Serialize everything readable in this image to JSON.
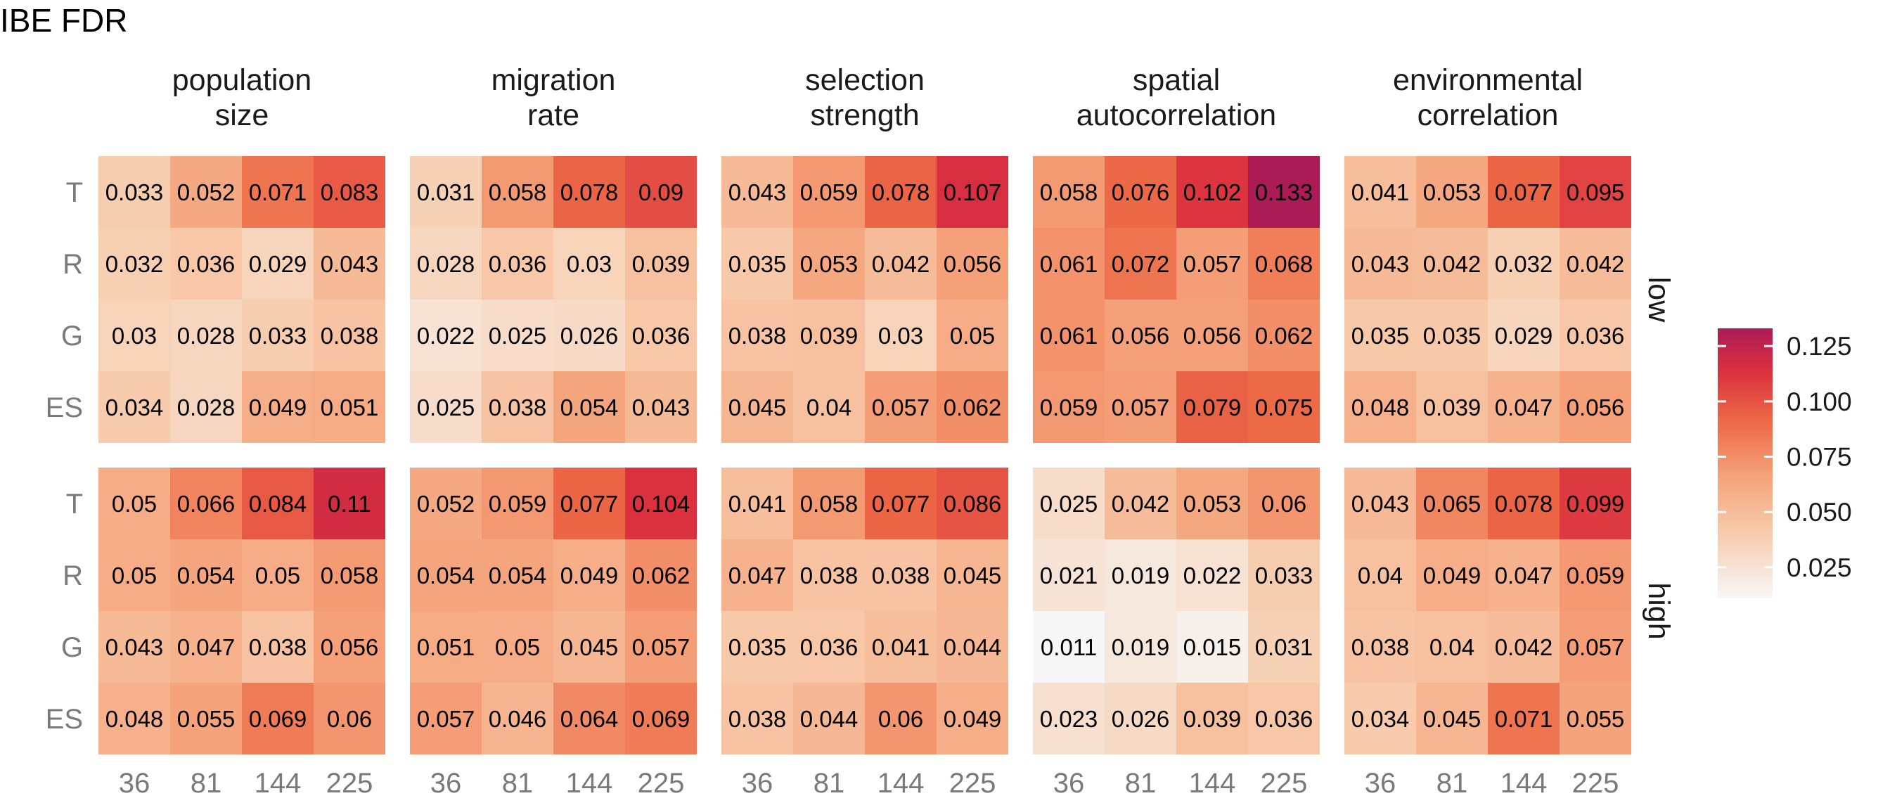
{
  "chart_data": {
    "type": "heatmap",
    "title": "IBE FDR",
    "columns": [
      {
        "label_lines": [
          "population",
          "size"
        ]
      },
      {
        "label_lines": [
          "migration",
          "rate"
        ]
      },
      {
        "label_lines": [
          "selection",
          "strength"
        ]
      },
      {
        "label_lines": [
          "spatial",
          "autocorrelation"
        ]
      },
      {
        "label_lines": [
          "environmental",
          "correlation"
        ]
      }
    ],
    "row_facets": [
      "low",
      "high"
    ],
    "x_categories": [
      "36",
      "81",
      "144",
      "225"
    ],
    "y_categories": [
      "T",
      "R",
      "G",
      "ES"
    ],
    "legend": {
      "position": "right",
      "ticks": [
        "0.125",
        "0.100",
        "0.075",
        "0.050",
        "0.025"
      ],
      "tick_values": [
        0.125,
        0.1,
        0.075,
        0.05,
        0.025
      ],
      "min": 0.011,
      "max": 0.133
    },
    "colors": {
      "low": "#f7f7f7",
      "mid1": "#f7c9a9",
      "mid2": "#f5a37b",
      "mid3": "#ed6a47",
      "high1": "#da2f3f",
      "high2": "#ab1c57"
    },
    "values": {
      "low": [
        [
          [
            "0.033",
            "0.052",
            "0.071",
            "0.083"
          ],
          [
            "0.032",
            "0.036",
            "0.029",
            "0.043"
          ],
          [
            "0.03",
            "0.028",
            "0.033",
            "0.038"
          ],
          [
            "0.034",
            "0.028",
            "0.049",
            "0.051"
          ]
        ],
        [
          [
            "0.031",
            "0.058",
            "0.078",
            "0.09"
          ],
          [
            "0.028",
            "0.036",
            "0.03",
            "0.039"
          ],
          [
            "0.022",
            "0.025",
            "0.026",
            "0.036"
          ],
          [
            "0.025",
            "0.038",
            "0.054",
            "0.043"
          ]
        ],
        [
          [
            "0.043",
            "0.059",
            "0.078",
            "0.107"
          ],
          [
            "0.035",
            "0.053",
            "0.042",
            "0.056"
          ],
          [
            "0.038",
            "0.039",
            "0.03",
            "0.05"
          ],
          [
            "0.045",
            "0.04",
            "0.057",
            "0.062"
          ]
        ],
        [
          [
            "0.058",
            "0.076",
            "0.102",
            "0.133"
          ],
          [
            "0.061",
            "0.072",
            "0.057",
            "0.068"
          ],
          [
            "0.061",
            "0.056",
            "0.056",
            "0.062"
          ],
          [
            "0.059",
            "0.057",
            "0.079",
            "0.075"
          ]
        ],
        [
          [
            "0.041",
            "0.053",
            "0.077",
            "0.095"
          ],
          [
            "0.043",
            "0.042",
            "0.032",
            "0.042"
          ],
          [
            "0.035",
            "0.035",
            "0.029",
            "0.036"
          ],
          [
            "0.048",
            "0.039",
            "0.047",
            "0.056"
          ]
        ]
      ],
      "high": [
        [
          [
            "0.05",
            "0.066",
            "0.084",
            "0.11"
          ],
          [
            "0.05",
            "0.054",
            "0.05",
            "0.058"
          ],
          [
            "0.043",
            "0.047",
            "0.038",
            "0.056"
          ],
          [
            "0.048",
            "0.055",
            "0.069",
            "0.06"
          ]
        ],
        [
          [
            "0.052",
            "0.059",
            "0.077",
            "0.104"
          ],
          [
            "0.054",
            "0.054",
            "0.049",
            "0.062"
          ],
          [
            "0.051",
            "0.05",
            "0.045",
            "0.057"
          ],
          [
            "0.057",
            "0.046",
            "0.064",
            "0.069"
          ]
        ],
        [
          [
            "0.041",
            "0.058",
            "0.077",
            "0.086"
          ],
          [
            "0.047",
            "0.038",
            "0.038",
            "0.045"
          ],
          [
            "0.035",
            "0.036",
            "0.041",
            "0.044"
          ],
          [
            "0.038",
            "0.044",
            "0.06",
            "0.049"
          ]
        ],
        [
          [
            "0.025",
            "0.042",
            "0.053",
            "0.06"
          ],
          [
            "0.021",
            "0.019",
            "0.022",
            "0.033"
          ],
          [
            "0.011",
            "0.019",
            "0.015",
            "0.031"
          ],
          [
            "0.023",
            "0.026",
            "0.039",
            "0.036"
          ]
        ],
        [
          [
            "0.043",
            "0.065",
            "0.078",
            "0.099"
          ],
          [
            "0.04",
            "0.049",
            "0.047",
            "0.059"
          ],
          [
            "0.038",
            "0.04",
            "0.042",
            "0.057"
          ],
          [
            "0.034",
            "0.045",
            "0.071",
            "0.055"
          ]
        ]
      ]
    }
  }
}
